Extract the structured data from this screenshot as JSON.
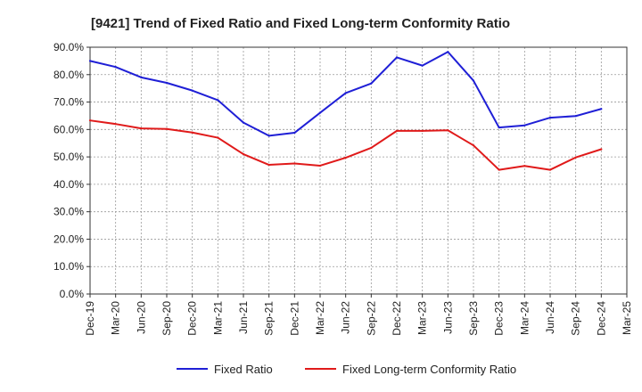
{
  "chart_data": {
    "type": "line",
    "title": "[9421]  Trend of Fixed Ratio and Fixed Long-term Conformity Ratio",
    "xlabel": "",
    "ylabel": "",
    "ylim": [
      0,
      90
    ],
    "y_ticks": [
      "0.0%",
      "10.0%",
      "20.0%",
      "30.0%",
      "40.0%",
      "50.0%",
      "60.0%",
      "70.0%",
      "80.0%",
      "90.0%"
    ],
    "x_tick_labels": [
      "Dec-19",
      "Mar-20",
      "Jun-20",
      "Sep-20",
      "Dec-20",
      "Mar-21",
      "Jun-21",
      "Sep-21",
      "Dec-21",
      "Mar-22",
      "Jun-22",
      "Sep-22",
      "Dec-22",
      "Mar-23",
      "Jun-23",
      "Sep-23",
      "Dec-23",
      "Mar-24",
      "Jun-24",
      "Sep-24",
      "Dec-24",
      "Mar-25"
    ],
    "grid": true,
    "legend_position": "bottom",
    "x": [
      "Dec-19",
      "Mar-20",
      "Jun-20",
      "Sep-20",
      "Dec-20",
      "Mar-21",
      "Jun-21",
      "Sep-21",
      "Dec-21",
      "Mar-22",
      "Jun-22",
      "Sep-22",
      "Dec-22",
      "Mar-23",
      "Jun-23",
      "Sep-23",
      "Dec-23",
      "Mar-24",
      "Jun-24",
      "Sep-24",
      "Dec-24"
    ],
    "series": [
      {
        "name": "Fixed Ratio",
        "color": "#1f1fd6",
        "values": [
          85.0,
          82.8,
          79.0,
          77.0,
          74.2,
          70.7,
          62.5,
          57.7,
          58.8,
          66.1,
          73.3,
          76.8,
          86.3,
          83.3,
          88.3,
          77.8,
          60.7,
          61.5,
          64.3,
          64.9,
          67.5
        ]
      },
      {
        "name": "Fixed Long-term Conformity Ratio",
        "color": "#e01a1a",
        "values": [
          63.3,
          62.0,
          60.4,
          60.2,
          58.9,
          57.0,
          51.0,
          47.1,
          47.6,
          46.8,
          49.7,
          53.3,
          59.5,
          59.5,
          59.7,
          54.2,
          45.3,
          46.7,
          45.3,
          49.8,
          52.8
        ]
      }
    ]
  }
}
